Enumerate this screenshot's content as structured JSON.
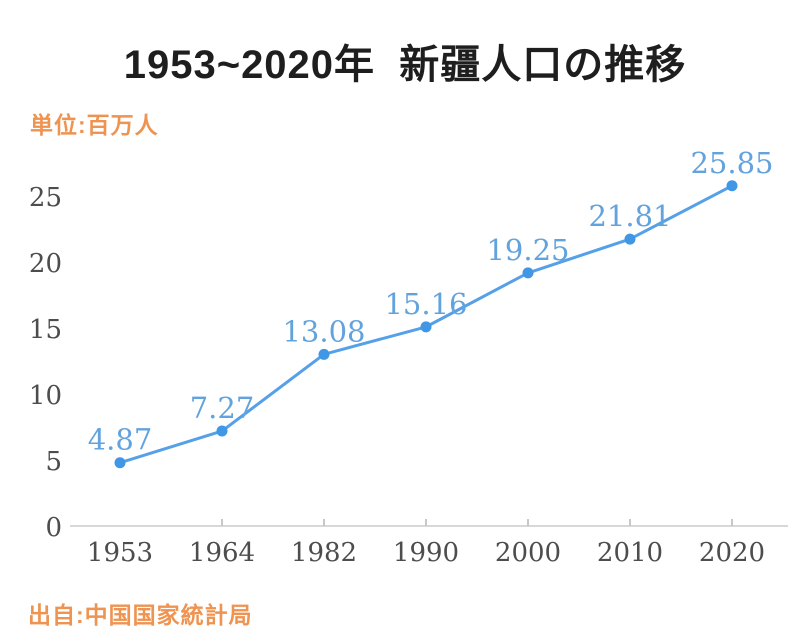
{
  "page": {
    "title": "1953~2020年  新疆人口の推移",
    "unit_label": "単位:百万人",
    "source": "出自:中国国家統計局"
  },
  "colors": {
    "accent_orange": "#EF9350",
    "line_blue": "#55A0E8",
    "point_blue": "#3F97E5",
    "label_blue": "#63A3DD",
    "axis_text": "#4D4D4D",
    "axis_line": "#D8D8D8",
    "tick": "#C8C8C8",
    "title_text": "#1E1E1E"
  },
  "chart_data": {
    "type": "line",
    "title": "1953~2020年 新疆人口の推移",
    "unit": "百万人",
    "source": "中国国家統計局",
    "categories": [
      "1953",
      "1964",
      "1982",
      "1990",
      "2000",
      "2010",
      "2020"
    ],
    "values": [
      4.87,
      7.27,
      13.08,
      15.16,
      19.25,
      21.81,
      25.85
    ],
    "point_labels": [
      "4.87",
      "7.27",
      "13.08",
      "15.16",
      "19.25",
      "21.81",
      "25.85"
    ],
    "yticks": [
      0,
      5,
      10,
      15,
      20,
      25
    ],
    "ylim": [
      0,
      27
    ],
    "xlabel": "",
    "ylabel": "",
    "grid": false,
    "legend": "none",
    "series_name": "新疆人口"
  }
}
